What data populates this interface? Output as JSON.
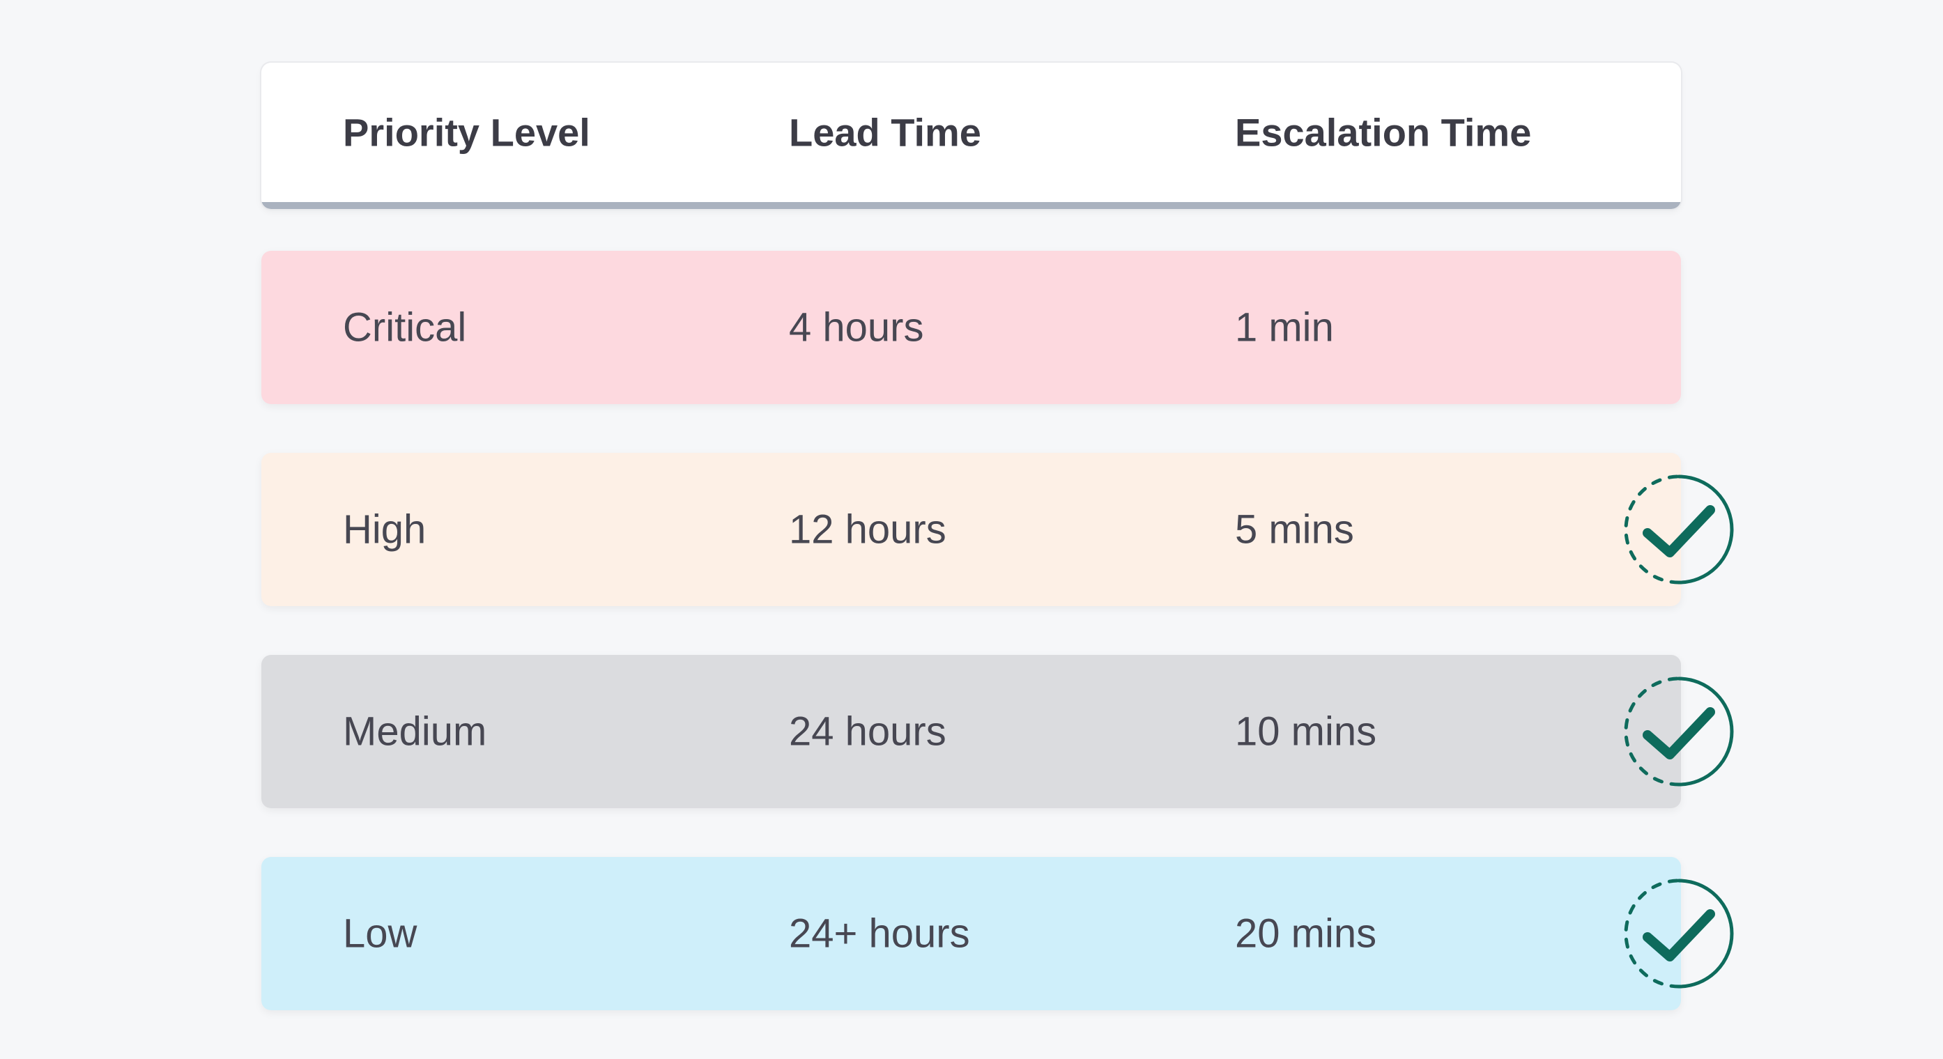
{
  "table": {
    "headers": [
      "Priority Level",
      "Lead Time",
      "Escalation Time"
    ],
    "rows": [
      {
        "priority": "Critical",
        "lead_time": "4 hours",
        "escalation_time": "1 min",
        "color": "#fdd9df",
        "checked": false
      },
      {
        "priority": "High",
        "lead_time": "12 hours",
        "escalation_time": "5 mins",
        "color": "#fdf0e6",
        "checked": true
      },
      {
        "priority": "Medium",
        "lead_time": "24 hours",
        "escalation_time": "10 mins",
        "color": "#dbdcdf",
        "checked": true
      },
      {
        "priority": "Low",
        "lead_time": "24+ hours",
        "escalation_time": "20 mins",
        "color": "#cfeffa",
        "checked": true
      }
    ]
  },
  "icons": {
    "check": "check-circle-icon"
  },
  "colors": {
    "check": "#0e6b5c",
    "header_border": "#aab2bf",
    "background": "#f6f7f9"
  }
}
